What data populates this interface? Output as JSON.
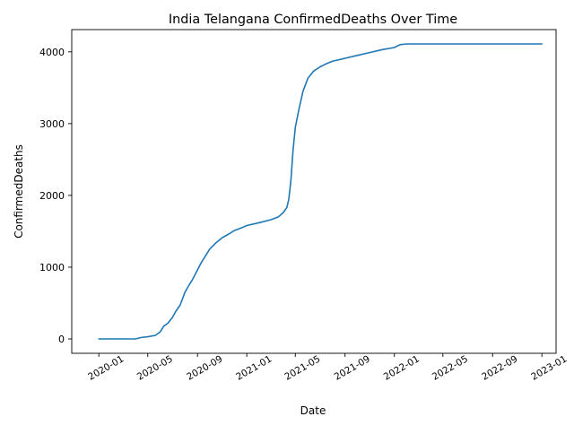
{
  "chart_data": {
    "type": "line",
    "title": "India Telangana ConfirmedDeaths Over Time",
    "xlabel": "Date",
    "ylabel": "ConfirmedDeaths",
    "x_ticks": [
      "2020-01",
      "2020-05",
      "2020-09",
      "2021-01",
      "2021-05",
      "2021-09",
      "2022-01",
      "2022-05",
      "2022-09",
      "2023-01"
    ],
    "y_ticks": [
      0,
      1000,
      2000,
      3000,
      4000
    ],
    "xlim": [
      "2019-10-26",
      "2023-02-05"
    ],
    "ylim": [
      -200,
      4310
    ],
    "grid": false,
    "series": [
      {
        "color": "#1f77b4",
        "x": [
          "2020-01-01",
          "2020-03-31",
          "2020-04-15",
          "2020-05-01",
          "2020-05-20",
          "2020-06-01",
          "2020-06-10",
          "2020-06-20",
          "2020-07-01",
          "2020-07-10",
          "2020-07-20",
          "2020-08-01",
          "2020-08-10",
          "2020-08-20",
          "2020-09-01",
          "2020-09-10",
          "2020-09-20",
          "2020-10-01",
          "2020-10-15",
          "2020-11-01",
          "2020-11-20",
          "2020-12-01",
          "2020-12-20",
          "2021-01-01",
          "2021-02-01",
          "2021-03-01",
          "2021-03-20",
          "2021-04-01",
          "2021-04-10",
          "2021-04-15",
          "2021-04-20",
          "2021-04-25",
          "2021-05-01",
          "2021-05-10",
          "2021-05-20",
          "2021-06-01",
          "2021-06-15",
          "2021-07-01",
          "2021-07-15",
          "2021-08-01",
          "2021-09-01",
          "2021-10-01",
          "2021-11-01",
          "2021-12-01",
          "2022-01-01",
          "2022-01-15",
          "2022-02-01",
          "2022-03-01",
          "2022-06-01",
          "2022-09-01",
          "2023-01-01"
        ],
        "y": [
          0,
          0,
          20,
          30,
          50,
          100,
          180,
          220,
          300,
          390,
          470,
          650,
          740,
          830,
          960,
          1060,
          1150,
          1250,
          1330,
          1410,
          1470,
          1510,
          1550,
          1580,
          1620,
          1660,
          1700,
          1760,
          1830,
          1950,
          2200,
          2600,
          2950,
          3200,
          3450,
          3630,
          3730,
          3790,
          3830,
          3870,
          3910,
          3950,
          3990,
          4030,
          4060,
          4100,
          4110,
          4110,
          4110,
          4110,
          4110
        ]
      }
    ]
  }
}
